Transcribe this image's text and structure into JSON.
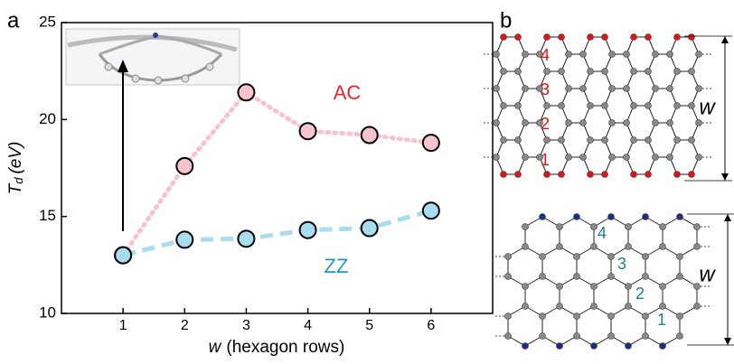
{
  "panel_labels": [
    "a",
    "b"
  ],
  "chart_data": {
    "type": "line",
    "x_label_var": "w",
    "x_label": "(hexagon rows)",
    "y_label_var": "T",
    "y_label_sub": "d",
    "y_label_unit": "(eV)",
    "x": [
      1,
      2,
      3,
      4,
      5,
      6
    ],
    "xlim": [
      0,
      7
    ],
    "xticks": [
      1,
      2,
      3,
      4,
      5,
      6
    ],
    "ylim": [
      10,
      25
    ],
    "yticks": [
      10,
      15,
      20,
      25
    ],
    "series": [
      {
        "name": "AC",
        "color": "#f6c3cf",
        "label_color": "#e52630",
        "style": "dotted",
        "values": [
          13.0,
          17.6,
          21.4,
          19.4,
          19.2,
          18.8
        ]
      },
      {
        "name": "ZZ",
        "color": "#a8dcef",
        "label_color": "#1d9bb6",
        "style": "dashed",
        "values": [
          13.0,
          13.8,
          13.85,
          14.3,
          14.4,
          15.3
        ]
      }
    ]
  },
  "diagram": {
    "armchair": {
      "row_labels": [
        "1",
        "2",
        "3",
        "4"
      ],
      "width_label": "w",
      "edge_color": "#e0141b"
    },
    "zigzag": {
      "row_labels": [
        "1",
        "2",
        "3",
        "4"
      ],
      "width_label": "w",
      "edge_color": "#1c2f86"
    }
  }
}
